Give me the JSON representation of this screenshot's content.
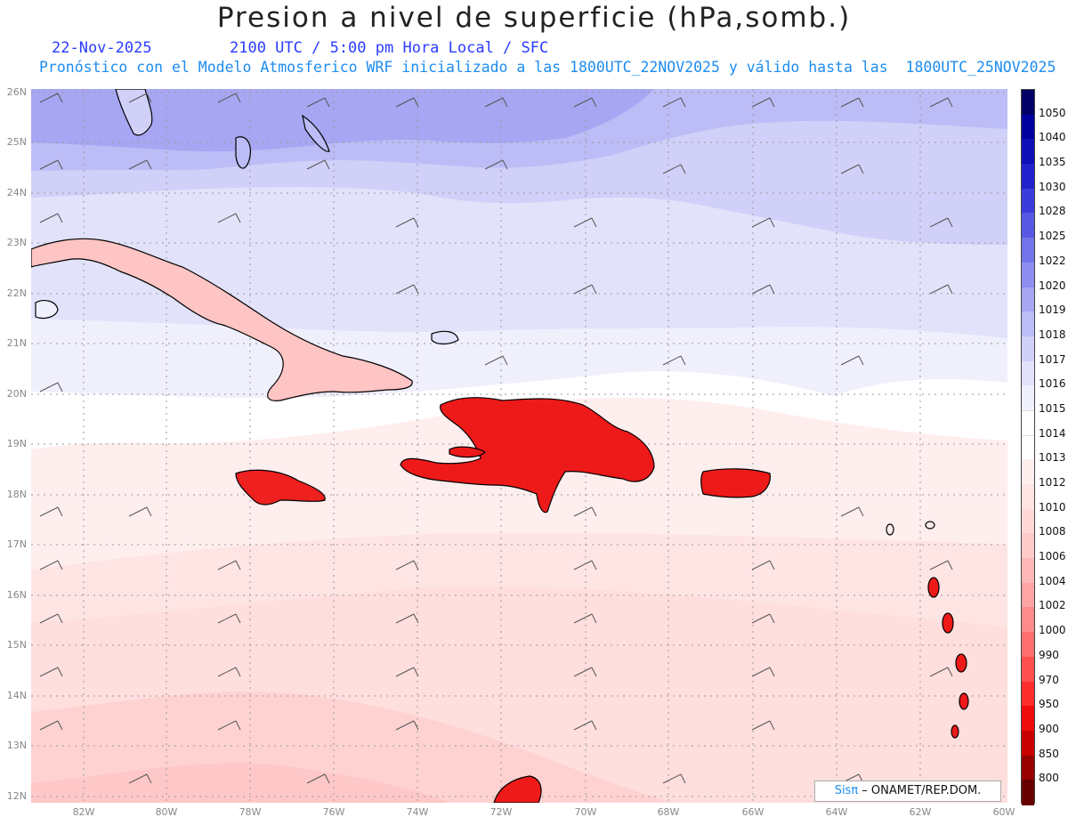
{
  "header": {
    "title": "Presion a nivel de superficie (hPa,somb.)",
    "date": "22-Nov-2025",
    "time_info": "2100 UTC / 5:00 pm Hora Local / SFC",
    "model_info": "Pronóstico con el Modelo Atmosferico WRF inicializado a las 1800UTC_22NOV2025 y válido hasta las  1800UTC_25NOV2025"
  },
  "map": {
    "lat_labels": [
      "26N",
      "25N",
      "24N",
      "23N",
      "22N",
      "21N",
      "20N",
      "19N",
      "18N",
      "17N",
      "16N",
      "15N",
      "14N",
      "13N",
      "12N"
    ],
    "lon_labels": [
      "82W",
      "80W",
      "78W",
      "76W",
      "74W",
      "72W",
      "70W",
      "68W",
      "66W",
      "64W",
      "62W",
      "60W"
    ]
  },
  "colorbar": {
    "levels": [
      {
        "label": "1050",
        "color": "#000066"
      },
      {
        "label": "1040",
        "color": "#00009e"
      },
      {
        "label": "1035",
        "color": "#1010b8"
      },
      {
        "label": "1030",
        "color": "#2222cc"
      },
      {
        "label": "1028",
        "color": "#3c3cdc"
      },
      {
        "label": "1025",
        "color": "#5858e4"
      },
      {
        "label": "1022",
        "color": "#7474ea"
      },
      {
        "label": "1020",
        "color": "#8e8ef0"
      },
      {
        "label": "1019",
        "color": "#a6a6f3"
      },
      {
        "label": "1018",
        "color": "#bcbcf6"
      },
      {
        "label": "1017",
        "color": "#d0d0f9"
      },
      {
        "label": "1016",
        "color": "#e2e2fb"
      },
      {
        "label": "1015",
        "color": "#f0f0fd"
      },
      {
        "label": "1014",
        "color": "#ffffff"
      },
      {
        "label": "1013",
        "color": "#ffffff"
      },
      {
        "label": "1012",
        "color": "#ffeeee"
      },
      {
        "label": "1010",
        "color": "#ffe4e4"
      },
      {
        "label": "1008",
        "color": "#ffd8d8"
      },
      {
        "label": "1006",
        "color": "#ffcaca"
      },
      {
        "label": "1004",
        "color": "#ffb8b8"
      },
      {
        "label": "1002",
        "color": "#ffa4a4"
      },
      {
        "label": "1000",
        "color": "#ff8c8c"
      },
      {
        "label": "990",
        "color": "#ff7070"
      },
      {
        "label": "970",
        "color": "#ff5050"
      },
      {
        "label": "950",
        "color": "#ff2e2e"
      },
      {
        "label": "900",
        "color": "#ee0c0c"
      },
      {
        "label": "850",
        "color": "#c80000"
      },
      {
        "label": "800",
        "color": "#960000"
      },
      {
        "label": "",
        "color": "#660000"
      }
    ]
  },
  "credit": {
    "brand": "Sisπ",
    "text": " – ONAMET/REP.DOM."
  }
}
